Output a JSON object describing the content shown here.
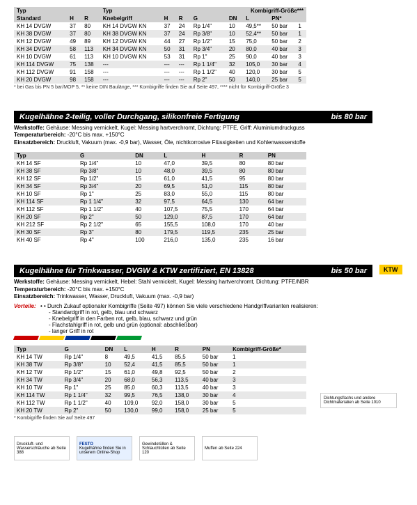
{
  "table1": {
    "headers_left": [
      "Typ",
      "",
      "H",
      "R"
    ],
    "headers_right": [
      "Typ",
      "",
      "H",
      "R",
      "G",
      "DN",
      "L",
      "PN*",
      "Kombigriff-Größe***"
    ],
    "label_standard": "Standard",
    "label_knebel": "Knebelgriff",
    "rows": [
      [
        "KH 14 DVGW",
        "37",
        "80",
        "KH 14 DVGW KN",
        "37",
        "24",
        "Rp 1/4\"",
        "10",
        "49,5**",
        "50 bar",
        "1"
      ],
      [
        "KH 38 DVGW",
        "37",
        "80",
        "KH 38 DVGW KN",
        "37",
        "24",
        "Rp 3/8\"",
        "10",
        "52,4**",
        "50 bar",
        "1"
      ],
      [
        "KH 12 DVGW",
        "49",
        "89",
        "KH 12 DVGW KN",
        "44",
        "27",
        "Rp 1/2\"",
        "15",
        "75,0",
        "50 bar",
        "2"
      ],
      [
        "KH 34 DVGW",
        "58",
        "113",
        "KH 34 DVGW KN",
        "50",
        "31",
        "Rp 3/4\"",
        "20",
        "80,0",
        "40 bar",
        "3"
      ],
      [
        "KH 10 DVGW",
        "61",
        "113",
        "KH 10 DVGW KN",
        "53",
        "31",
        "Rp 1\"",
        "25",
        "90,0",
        "40 bar",
        "3"
      ],
      [
        "KH 114 DVGW",
        "75",
        "138",
        "---",
        "---",
        "---",
        "Rp 1 1/4\"",
        "32",
        "105,0",
        "30 bar",
        "4"
      ],
      [
        "KH 112 DVGW",
        "91",
        "158",
        "---",
        "---",
        "---",
        "Rp 1 1/2\"",
        "40",
        "120,0",
        "30 bar",
        "5"
      ],
      [
        "KH 20 DVGW",
        "98",
        "158",
        "---",
        "---",
        "---",
        "Rp 2\"",
        "50",
        "140,0",
        "25 bar",
        "5"
      ]
    ],
    "footnote": "* bei Gas bis PN 5 bar/MOP 5, ** keine DIN Baulänge, *** Kombigriffe finden Sie auf Seite 497, **** nicht für Kombigriff-Größe 3"
  },
  "section2": {
    "title": "Kugelhähne 2-teilig, voller Durchgang, silikonfreie Fertigung",
    "pressure": "bis 80 bar",
    "specs_l1_label": "Werkstoffe:",
    "specs_l1": "Gehäuse: Messing vernickelt, Kugel: Messing hartverchromt, Dichtung: PTFE, Griff: Aluminiumdruckguss",
    "specs_l2_label": "Temperaturbereich:",
    "specs_l2": "-20°C bis max. +150°C",
    "specs_l3_label": "Einsatzbereich:",
    "specs_l3": "Druckluft, Vakuum (max. -0,9 bar), Wasser, Öle, nichtkorrosive Flüssigkeiten und Kohlenwasserstoffe"
  },
  "table2": {
    "headers": [
      "Typ",
      "G",
      "DN",
      "L",
      "H",
      "R",
      "PN"
    ],
    "rows": [
      [
        "KH 14 SF",
        "Rp 1/4\"",
        "10",
        "47,0",
        "39,5",
        "80",
        "80 bar"
      ],
      [
        "KH 38 SF",
        "Rp 3/8\"",
        "10",
        "48,0",
        "39,5",
        "80",
        "80 bar"
      ],
      [
        "KH 12 SF",
        "Rp 1/2\"",
        "15",
        "61,0",
        "41,5",
        "95",
        "80 bar"
      ],
      [
        "KH 34 SF",
        "Rp 3/4\"",
        "20",
        "69,5",
        "51,0",
        "115",
        "80 bar"
      ],
      [
        "KH 10 SF",
        "Rp 1\"",
        "25",
        "83,0",
        "55,0",
        "115",
        "80 bar"
      ],
      [
        "KH 114 SF",
        "Rp 1 1/4\"",
        "32",
        "97,5",
        "64,5",
        "130",
        "64 bar"
      ],
      [
        "KH 112 SF",
        "Rp 1 1/2\"",
        "40",
        "107,5",
        "75,5",
        "170",
        "64 bar"
      ],
      [
        "KH 20 SF",
        "Rp 2\"",
        "50",
        "129,0",
        "87,5",
        "170",
        "64 bar"
      ],
      [
        "KH 212 SF",
        "Rp 2 1/2\"",
        "65",
        "155,5",
        "108,0",
        "170",
        "40 bar"
      ],
      [
        "KH 30 SF",
        "Rp 3\"",
        "80",
        "179,5",
        "119,5",
        "235",
        "25 bar"
      ],
      [
        "KH 40 SF",
        "Rp 4\"",
        "100",
        "216,0",
        "135,0",
        "235",
        "16 bar"
      ]
    ]
  },
  "section3": {
    "title": "Kugelhähne für Trinkwasser, DVGW & KTW zertifiziert, EN 13828",
    "pressure": "bis 50 bar",
    "badge": "KTW",
    "specs_l1_label": "Werkstoffe:",
    "specs_l1": "Gehäuse: Messing vernickelt, Hebel: Stahl vernickelt, Kugel: Messing hartverchromt, Dichtung: PTFE/NBR",
    "specs_l2_label": "Temperaturbereich:",
    "specs_l2": "-20°C bis max. +150°C",
    "specs_l3_label": "Einsatzbereich:",
    "specs_l3": "Trinkwasser, Wasser, Druckluft, Vakuum (max. -0,9 bar)"
  },
  "vorteile": {
    "label": "Vorteile:",
    "intro": "Durch Zukauf optionaler Kombigriffe (Seite 497) können Sie viele verschiedene Handgriffvarianten realisieren:",
    "items": [
      "Standardgriff in rot, gelb, blau und schwarz",
      "Knebelgriff in den Farben rot, gelb, blau, schwarz und grün",
      "Flachstahlgriff in rot, gelb und grün (optional: abschließbar)",
      "langer Griff in rot"
    ]
  },
  "table3": {
    "headers": [
      "Typ",
      "G",
      "DN",
      "L",
      "H",
      "R",
      "PN",
      "Kombigriff-Größe*"
    ],
    "rows": [
      [
        "KH 14 TW",
        "Rp 1/4\"",
        "8",
        "49,5",
        "41,5",
        "85,5",
        "50 bar",
        "1"
      ],
      [
        "KH 38 TW",
        "Rp 3/8\"",
        "10",
        "52,4",
        "41,5",
        "85,5",
        "50 bar",
        "1"
      ],
      [
        "KH 12 TW",
        "Rp 1/2\"",
        "15",
        "61,0",
        "49,8",
        "92,5",
        "50 bar",
        "2"
      ],
      [
        "KH 34 TW",
        "Rp 3/4\"",
        "20",
        "68,0",
        "56,3",
        "113,5",
        "40 bar",
        "3"
      ],
      [
        "KH 10 TW",
        "Rp 1\"",
        "25",
        "85,0",
        "60,3",
        "113,5",
        "40 bar",
        "3"
      ],
      [
        "KH 114 TW",
        "Rp 1 1/4\"",
        "32",
        "99,5",
        "76,5",
        "138,0",
        "30 bar",
        "4"
      ],
      [
        "KH 112 TW",
        "Rp 1 1/2\"",
        "40",
        "109,0",
        "92,0",
        "158,0",
        "30 bar",
        "5"
      ],
      [
        "KH 20 TW",
        "Rp 2\"",
        "50",
        "130,0",
        "99,0",
        "158,0",
        "25 bar",
        "5"
      ]
    ],
    "footnote": "* Kombigriffe finden Sie auf Seite 497"
  },
  "sidebox": {
    "text": "Dichtungsflachs und andere Dichtmaterialien ab Seite 1010"
  },
  "footer": {
    "b1": "Druckluft- und Wasserschläuche ab Seite 388",
    "b2_l1": "FESTO",
    "b2_l2": "Kugelhähne finden Sie in unserem Online-Shop",
    "b3": "Gewindetüllen & Schlauchtüllen ab Seite 120",
    "b4": "Muffen ab Seite 224"
  }
}
